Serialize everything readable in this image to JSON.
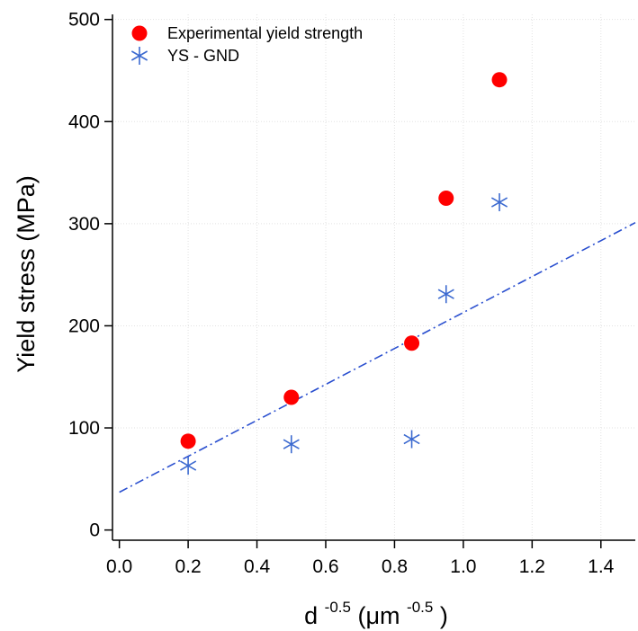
{
  "chart_data": {
    "type": "scatter",
    "xlabel": {
      "base": "d",
      "base_exp": "-0.5",
      "open": "(μm",
      "unit_exp": "-0.5",
      "close": ")"
    },
    "ylabel": "Yield stress (MPa)",
    "xlim": [
      -0.02,
      1.5
    ],
    "ylim": [
      -10,
      505
    ],
    "xticks": [
      "0.0",
      "0.2",
      "0.4",
      "0.6",
      "0.8",
      "1.0",
      "1.2",
      "1.4"
    ],
    "yticks": [
      "0",
      "100",
      "200",
      "300",
      "400",
      "500"
    ],
    "grid": true,
    "legend_position": "top-left",
    "series": [
      {
        "name": "Experimental yield strength",
        "marker": "filled-circle",
        "color": "#ff0000",
        "points": [
          {
            "x": 0.2,
            "y": 87
          },
          {
            "x": 0.5,
            "y": 130
          },
          {
            "x": 0.85,
            "y": 183
          },
          {
            "x": 0.95,
            "y": 325
          },
          {
            "x": 1.105,
            "y": 441
          }
        ]
      },
      {
        "name": "YS - GND",
        "marker": "asterisk",
        "color": "#3c6ad0",
        "points": [
          {
            "x": 0.2,
            "y": 63
          },
          {
            "x": 0.5,
            "y": 84
          },
          {
            "x": 0.85,
            "y": 89
          },
          {
            "x": 0.95,
            "y": 231
          },
          {
            "x": 1.105,
            "y": 321
          }
        ]
      }
    ],
    "trendline": {
      "style": "dash-dot",
      "color": "#2a4fcf",
      "from": {
        "x": 0.0,
        "y": 37
      },
      "to": {
        "x": 1.5,
        "y": 301
      }
    }
  }
}
